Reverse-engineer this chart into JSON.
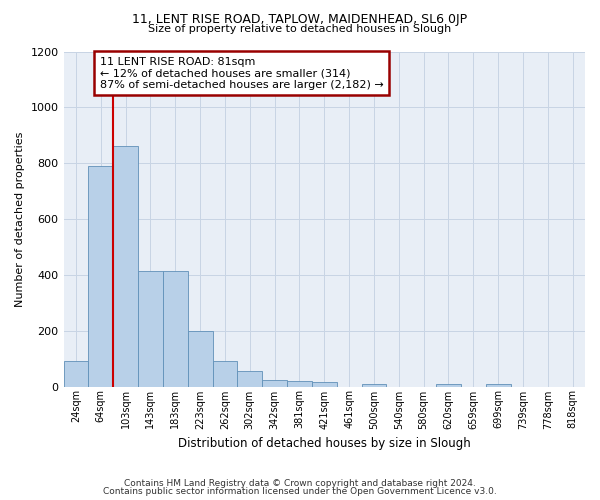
{
  "title1": "11, LENT RISE ROAD, TAPLOW, MAIDENHEAD, SL6 0JP",
  "title2": "Size of property relative to detached houses in Slough",
  "xlabel": "Distribution of detached houses by size in Slough",
  "ylabel": "Number of detached properties",
  "footnote1": "Contains HM Land Registry data © Crown copyright and database right 2024.",
  "footnote2": "Contains public sector information licensed under the Open Government Licence v3.0.",
  "categories": [
    "24sqm",
    "64sqm",
    "103sqm",
    "143sqm",
    "183sqm",
    "223sqm",
    "262sqm",
    "302sqm",
    "342sqm",
    "381sqm",
    "421sqm",
    "461sqm",
    "500sqm",
    "540sqm",
    "580sqm",
    "620sqm",
    "659sqm",
    "699sqm",
    "739sqm",
    "778sqm",
    "818sqm"
  ],
  "values": [
    90,
    790,
    860,
    415,
    415,
    200,
    90,
    55,
    25,
    20,
    15,
    0,
    10,
    0,
    0,
    10,
    0,
    10,
    0,
    0,
    0
  ],
  "bar_color": "#b8d0e8",
  "bar_edge_color": "#6090b8",
  "property_label": "11 LENT RISE ROAD: 81sqm",
  "annotation_line1": "← 12% of detached houses are smaller (314)",
  "annotation_line2": "87% of semi-detached houses are larger (2,182) →",
  "vline_x": 1.5,
  "ylim": [
    0,
    1200
  ],
  "annotation_box_color": "#990000",
  "background_color": "#e8eef6"
}
